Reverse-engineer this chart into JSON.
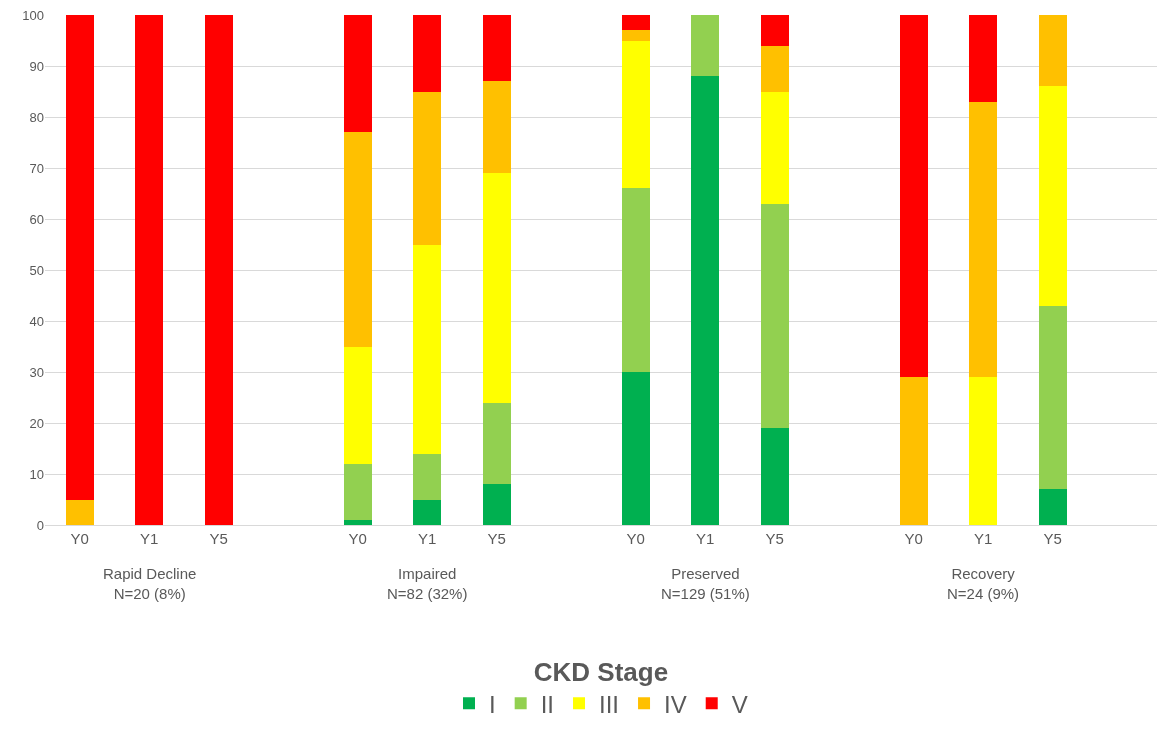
{
  "chart_data": {
    "type": "bar",
    "stacked": true,
    "categories": [
      "Y0",
      "Y1",
      "Y5",
      null,
      "Y0",
      "Y1",
      "Y5",
      null,
      "Y0",
      "Y1",
      "Y5",
      null,
      "Y0",
      "Y1",
      "Y5",
      null
    ],
    "series": [
      {
        "name": "I",
        "color": "#00b050",
        "values": [
          0,
          0,
          0,
          null,
          1,
          5,
          8,
          null,
          30,
          88,
          19,
          null,
          0,
          0,
          7,
          null
        ]
      },
      {
        "name": "II",
        "color": "#92d050",
        "values": [
          0,
          0,
          0,
          null,
          11,
          9,
          16,
          null,
          36,
          12,
          44,
          null,
          0,
          0,
          36,
          null
        ]
      },
      {
        "name": "III",
        "color": "#ffff00",
        "values": [
          0,
          0,
          0,
          null,
          23,
          41,
          45,
          null,
          29,
          0,
          22,
          null,
          0,
          29,
          43,
          null
        ]
      },
      {
        "name": "IV",
        "color": "#ffc000",
        "values": [
          5,
          0,
          0,
          null,
          42,
          30,
          18,
          null,
          2,
          0,
          9,
          null,
          29,
          54,
          14,
          null
        ]
      },
      {
        "name": "V",
        "color": "#ff0000",
        "values": [
          95,
          100,
          100,
          null,
          23,
          15,
          13,
          null,
          3,
          0,
          6,
          null,
          71,
          17,
          0,
          null
        ]
      }
    ],
    "ylim": [
      0,
      100
    ],
    "yticks": [
      0,
      10,
      20,
      30,
      40,
      50,
      60,
      70,
      80,
      90,
      100
    ],
    "grid": "y",
    "legend": "bottom",
    "legend_title": "CKD Stage",
    "annotations": [
      "Rapid Decline\nN=20 (8%)",
      "Impaired\nN=82 (32%)",
      "Preserved\nN=129 (51%)",
      "Recovery\nN=24 (9%)"
    ]
  }
}
